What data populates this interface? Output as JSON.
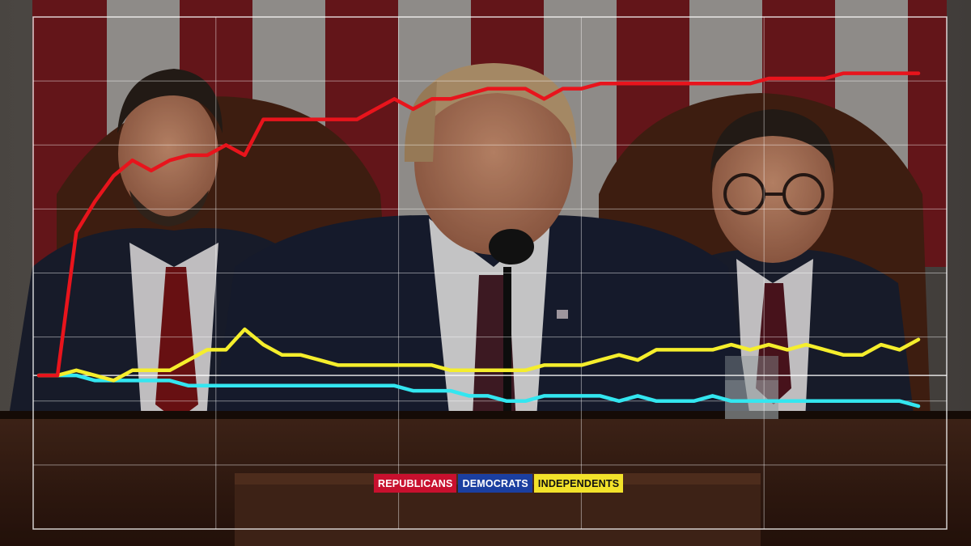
{
  "chart_data": {
    "type": "line",
    "title": "",
    "xlabel": "",
    "ylabel": "",
    "grid": true,
    "legend_position": "bottom-center",
    "series": [
      {
        "name": "REPUBLICANS",
        "color": "#e8141c",
        "label_bg": "#c8102e",
        "label_fg": "#ffffff",
        "values": [
          -0.2,
          -0.2,
          0.08,
          0.14,
          0.19,
          0.22,
          0.2,
          0.22,
          0.23,
          0.23,
          0.25,
          0.23,
          0.3,
          0.3,
          0.3,
          0.3,
          0.3,
          0.3,
          0.32,
          0.34,
          0.32,
          0.34,
          0.34,
          0.35,
          0.36,
          0.36,
          0.36,
          0.34,
          0.36,
          0.36,
          0.37,
          0.37,
          0.37,
          0.37,
          0.37,
          0.37,
          0.37,
          0.37,
          0.37,
          0.38,
          0.38,
          0.38,
          0.38,
          0.39,
          0.39,
          0.39,
          0.39,
          0.39
        ]
      },
      {
        "name": "DEMOCRATS",
        "color": "#33e6f0",
        "label_bg": "#1b3fa0",
        "label_fg": "#ffffff",
        "values": [
          -0.2,
          -0.2,
          -0.2,
          -0.21,
          -0.21,
          -0.21,
          -0.21,
          -0.21,
          -0.22,
          -0.22,
          -0.22,
          -0.22,
          -0.22,
          -0.22,
          -0.22,
          -0.22,
          -0.22,
          -0.22,
          -0.22,
          -0.22,
          -0.23,
          -0.23,
          -0.23,
          -0.24,
          -0.24,
          -0.25,
          -0.25,
          -0.24,
          -0.24,
          -0.24,
          -0.24,
          -0.25,
          -0.24,
          -0.25,
          -0.25,
          -0.25,
          -0.24,
          -0.25,
          -0.25,
          -0.25,
          -0.25,
          -0.25,
          -0.25,
          -0.25,
          -0.25,
          -0.25,
          -0.25,
          -0.26
        ]
      },
      {
        "name": "INDEPENDENTS",
        "color": "#f5ee2c",
        "label_bg": "#f2e22a",
        "label_fg": "#111111",
        "values": [
          -0.2,
          -0.2,
          -0.19,
          -0.2,
          -0.21,
          -0.19,
          -0.19,
          -0.19,
          -0.17,
          -0.15,
          -0.15,
          -0.11,
          -0.14,
          -0.16,
          -0.16,
          -0.17,
          -0.18,
          -0.18,
          -0.18,
          -0.18,
          -0.18,
          -0.18,
          -0.19,
          -0.19,
          -0.19,
          -0.19,
          -0.19,
          -0.18,
          -0.18,
          -0.18,
          -0.17,
          -0.16,
          -0.17,
          -0.15,
          -0.15,
          -0.15,
          -0.15,
          -0.14,
          -0.15,
          -0.14,
          -0.15,
          -0.14,
          -0.15,
          -0.16,
          -0.16,
          -0.14,
          -0.15,
          -0.13
        ]
      }
    ],
    "ylim": [
      -0.5,
      0.5
    ],
    "x_count": 48
  }
}
